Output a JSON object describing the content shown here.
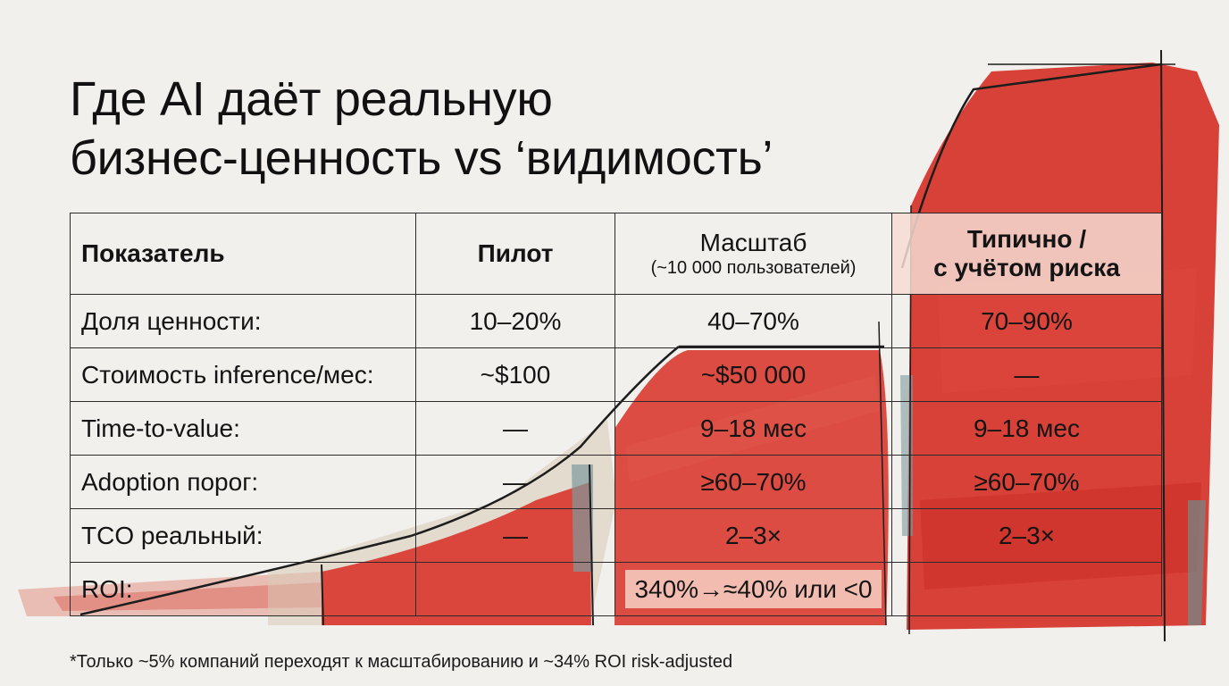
{
  "title": {
    "line1": "Где AI даёт реальную",
    "line2": "бизнес-ценность vs ‘видимость’"
  },
  "table": {
    "headers": {
      "metric": "Показатель",
      "pilot": "Пилот",
      "scale": "Масштаб",
      "scale_sub": "(~10 000 пользователей)",
      "risk_line1": "Типично /",
      "risk_line2": "с учётом риска"
    },
    "rows": [
      {
        "label": "Доля ценности:",
        "pilot": "10–20%",
        "scale": "40–70%",
        "risk": "70–90%"
      },
      {
        "label": "Стоимость inference/мес:",
        "pilot": "~$100",
        "scale": "~$50 000",
        "risk": "—"
      },
      {
        "label": "Time-to-value:",
        "pilot": "—",
        "scale": "9–18 мес",
        "risk": "9–18 мес"
      },
      {
        "label": "Adoption порог:",
        "pilot": "—",
        "scale": "≥60–70%",
        "risk": "≥60–70%"
      },
      {
        "label": "TCO реальный:",
        "pilot": "—",
        "scale": "2–3×",
        "risk": "2–3×"
      },
      {
        "label": "ROI:",
        "pilot": "",
        "scale": "340%→≈40% или <0",
        "risk": ""
      }
    ]
  },
  "footnote": "*Только ~5% компаний переходят к масштабированию и ~34% ROI risk-adjusted",
  "colors": {
    "paint_red": "#d93a30",
    "paint_dark_red": "#c22a22",
    "highlight_pink": "#f7d0c4",
    "background": "#f2f0ec",
    "ink": "#141414"
  }
}
